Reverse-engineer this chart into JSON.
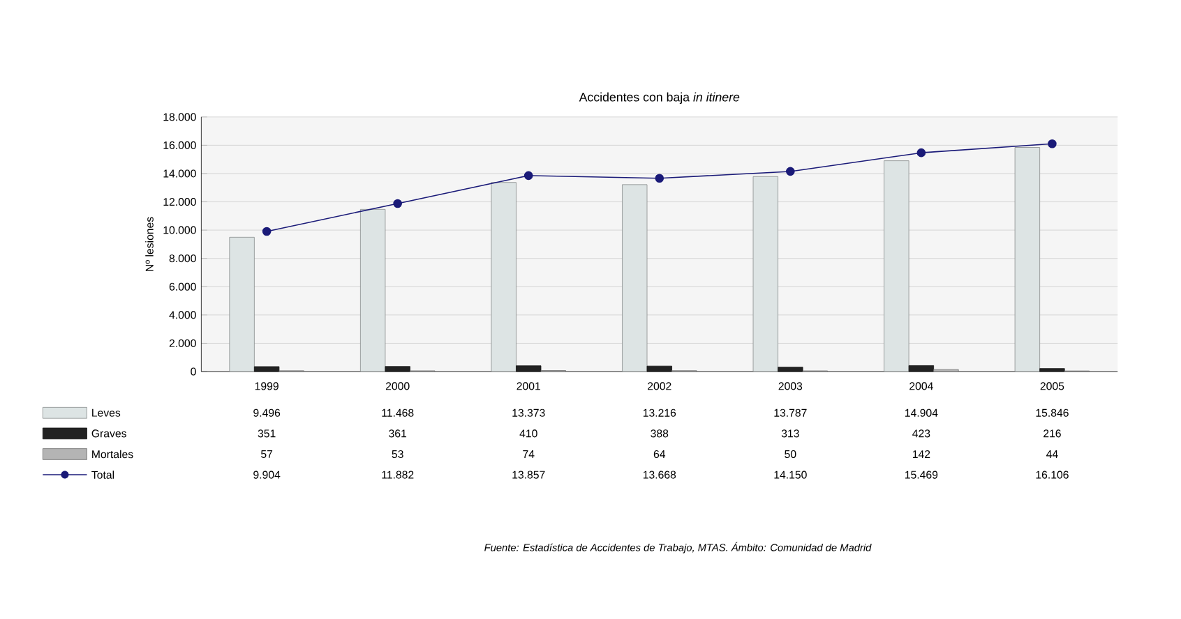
{
  "chart_data": {
    "type": "bar",
    "title": "Accidentes con baja *in itinere*",
    "ylabel": "Nº lesiones",
    "categories": [
      "1999",
      "2000",
      "2001",
      "2002",
      "2003",
      "2004",
      "2005"
    ],
    "series": [
      {
        "name": "Leves",
        "color": "#dde4e4",
        "values": [
          9496,
          11468,
          13373,
          13216,
          13787,
          14904,
          15846
        ],
        "value_labels": [
          "9.496",
          "11.468",
          "13.373",
          "13.216",
          "13.787",
          "14.904",
          "15.846"
        ]
      },
      {
        "name": "Graves",
        "color": "#222222",
        "values": [
          351,
          361,
          410,
          388,
          313,
          423,
          216
        ],
        "value_labels": [
          "351",
          "361",
          "410",
          "388",
          "313",
          "423",
          "216"
        ]
      },
      {
        "name": "Mortales",
        "color": "#b4b4b4",
        "values": [
          57,
          53,
          74,
          64,
          50,
          142,
          44
        ],
        "value_labels": [
          "57",
          "53",
          "74",
          "64",
          "50",
          "142",
          "44"
        ]
      },
      {
        "name": "Total",
        "type": "line",
        "color": "#1a1a78",
        "values": [
          9904,
          11882,
          13857,
          13668,
          14150,
          15469,
          16106
        ],
        "value_labels": [
          "9.904",
          "11.882",
          "13.857",
          "13.668",
          "14.150",
          "15.469",
          "16.106"
        ]
      }
    ],
    "ylim": [
      0,
      18000
    ],
    "yticks": [
      0,
      {
        "value": 2000,
        "label": "2.000"
      },
      {
        "value": 4000,
        "label": "4.000"
      },
      {
        "value": 6000,
        "label": "6.000"
      },
      {
        "value": 8000,
        "label": "8.000"
      },
      {
        "value": 10000,
        "label": "10.000"
      },
      {
        "value": 12000,
        "label": "12.000"
      },
      {
        "value": 14000,
        "label": "14.000"
      },
      {
        "value": 16000,
        "label": "16.000"
      },
      {
        "value": 18000,
        "label": "18.000"
      }
    ],
    "grid": "y",
    "legend": "bottom left",
    "marker": "circle",
    "annotations": [
      "Fuente: Estadística de Accidentes de Trabajo, MTAS. Ámbito: Comunidad de Madrid"
    ]
  }
}
